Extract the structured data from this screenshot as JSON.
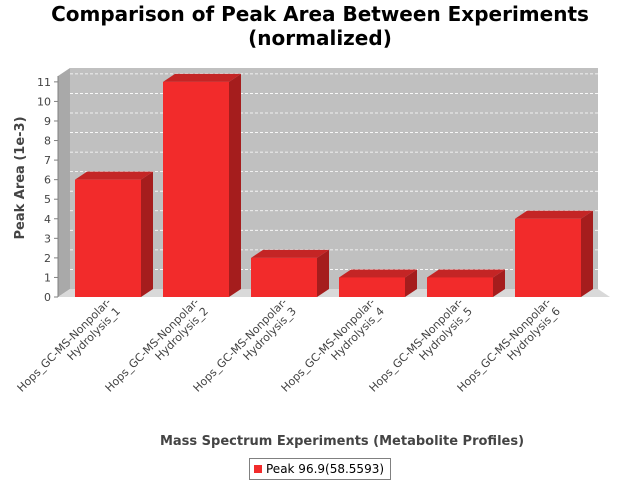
{
  "chart_data": {
    "type": "bar",
    "title_line1": "Comparison of Peak Area Between Experiments",
    "title_line2": "(normalized)",
    "xlabel": "Mass Spectrum Experiments (Metabolite Profiles)",
    "ylabel": "Peak Area (1e-3)",
    "ylim": [
      0,
      11.3
    ],
    "yticks": [
      0,
      1,
      2,
      3,
      4,
      5,
      6,
      7,
      8,
      9,
      10,
      11
    ],
    "grid": true,
    "legend_position": "bottom",
    "categories": [
      "Hops_GC-MS-Nonpolar-Hydrolysis_1",
      "Hops_GC-MS-Nonpolar-Hydrolysis_2",
      "Hops_GC-MS-Nonpolar-Hydrolysis_3",
      "Hops_GC-MS-Nonpolar-Hydrolysis_4",
      "Hops_GC-MS-Nonpolar-Hydrolysis_5",
      "Hops_GC-MS-Nonpolar-Hydrolysis_6"
    ],
    "category_lines": [
      [
        "Hops_GC-MS-Nonpolar-",
        "Hydrolysis_1"
      ],
      [
        "Hops_GC-MS-Nonpolar-",
        "Hydrolysis_2"
      ],
      [
        "Hops_GC-MS-Nonpolar-",
        "Hydrolysis_3"
      ],
      [
        "Hops_GC-MS-Nonpolar-",
        "Hydrolysis_4"
      ],
      [
        "Hops_GC-MS-Nonpolar-",
        "Hydrolysis_5"
      ],
      [
        "Hops_GC-MS-Nonpolar-",
        "Hydrolysis_6"
      ]
    ],
    "series": [
      {
        "name": "Peak 96.9(58.5593)",
        "values": [
          6.0,
          11.0,
          2.0,
          1.0,
          1.0,
          4.0
        ]
      }
    ],
    "colors": {
      "bar_front": "#f22b2b",
      "bar_top": "#c42525",
      "bar_side": "#a51d1d",
      "plot_back": "#c0c0c0",
      "plot_floor": "#d9d9d9",
      "plot_wall": "#a9a9a9",
      "grid": "#ffffff"
    }
  }
}
